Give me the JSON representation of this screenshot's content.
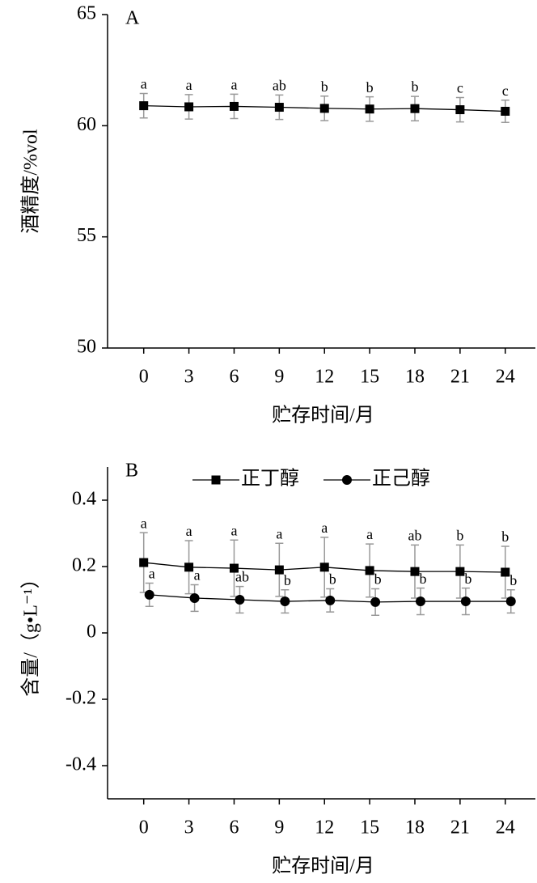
{
  "chart_data": [
    {
      "type": "line",
      "title": "A",
      "xlabel": "贮存时间/月",
      "ylabel": "酒精度/%vol",
      "x": [
        0,
        3,
        6,
        9,
        12,
        15,
        18,
        21,
        24
      ],
      "xlim": [
        -2.4,
        26
      ],
      "xticks": [
        0,
        3,
        6,
        9,
        12,
        15,
        18,
        21,
        24
      ],
      "ylim": [
        50,
        65
      ],
      "yticks": [
        50,
        55,
        60,
        65
      ],
      "series": [
        {
          "name": null,
          "color": "#000000",
          "marker": "square",
          "values": [
            60.9,
            60.85,
            60.87,
            60.83,
            60.78,
            60.75,
            60.77,
            60.72,
            60.65
          ],
          "errors": [
            0.55,
            0.55,
            0.55,
            0.55,
            0.55,
            0.55,
            0.55,
            0.55,
            0.5
          ],
          "annotations": [
            "a",
            "a",
            "a",
            "ab",
            "b",
            "b",
            "b",
            "c",
            "c"
          ]
        }
      ]
    },
    {
      "type": "line",
      "title": "B",
      "xlabel": "贮存时间/月",
      "ylabel": "含量/（g•L⁻¹）",
      "x": [
        0,
        3,
        6,
        9,
        12,
        15,
        18,
        21,
        24
      ],
      "xlim": [
        -2.4,
        26
      ],
      "xticks": [
        0,
        3,
        6,
        9,
        12,
        15,
        18,
        21,
        24
      ],
      "ylim": [
        -0.5,
        0.5
      ],
      "yticks": [
        -0.4,
        -0.2,
        0,
        0.2,
        0.4
      ],
      "series": [
        {
          "name": "正丁醇",
          "color": "#000000",
          "marker": "square",
          "values": [
            0.212,
            0.198,
            0.195,
            0.19,
            0.198,
            0.188,
            0.185,
            0.185,
            0.183
          ],
          "errors": [
            0.09,
            0.08,
            0.085,
            0.08,
            0.09,
            0.08,
            0.08,
            0.08,
            0.078
          ],
          "annotations": [
            "a",
            "a",
            "a",
            "a",
            "a",
            "a",
            "ab",
            "b",
            "b"
          ]
        },
        {
          "name": "正己醇",
          "color": "#000000",
          "marker": "circle",
          "values": [
            0.115,
            0.105,
            0.1,
            0.095,
            0.098,
            0.093,
            0.095,
            0.095,
            0.095
          ],
          "errors": [
            0.035,
            0.04,
            0.04,
            0.035,
            0.035,
            0.04,
            0.04,
            0.04,
            0.035
          ],
          "annotations": [
            "a",
            "a",
            "ab",
            "b",
            "b",
            "b",
            "b",
            "b",
            "b"
          ]
        }
      ]
    }
  ]
}
